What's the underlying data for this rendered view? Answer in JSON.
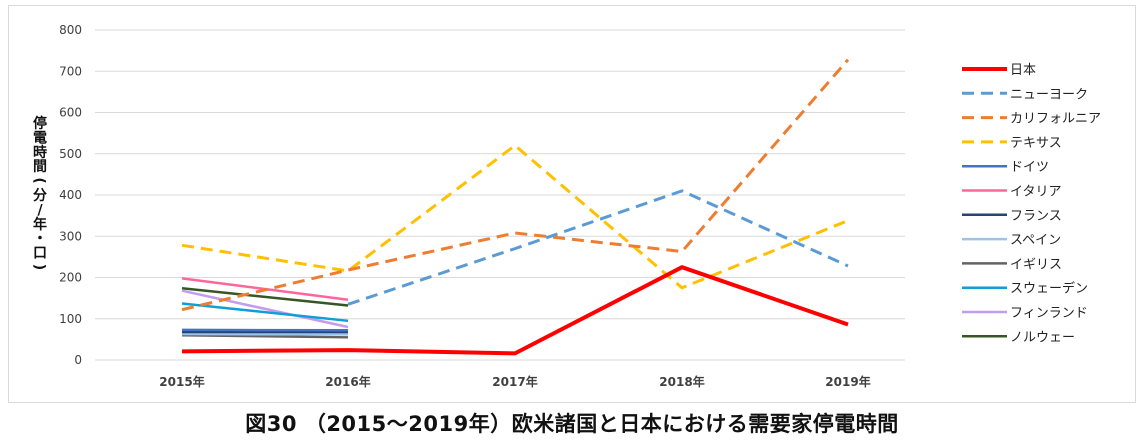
{
  "caption": "図30 （2015～2019年）欧米諸国と日本における需要家停電時間",
  "chart_data": {
    "type": "line",
    "ylabel": "停電時間(分/年・口)",
    "ylim": [
      0,
      800
    ],
    "yticks": [
      0,
      100,
      200,
      300,
      400,
      500,
      600,
      700,
      800
    ],
    "categories": [
      "2015年",
      "2016年",
      "2017年",
      "2018年",
      "2019年"
    ],
    "grid": true,
    "legend_position": "right",
    "series": [
      {
        "name": "日本",
        "color": "#ff0000",
        "dash": "solid",
        "width": 4,
        "values": [
          21,
          24,
          16,
          225,
          86
        ]
      },
      {
        "name": "ニューヨーク",
        "color": "#5b9bd5",
        "dash": "dashed",
        "width": 3,
        "values": [
          null,
          135,
          270,
          410,
          228
        ]
      },
      {
        "name": "カリフォルニア",
        "color": "#ed7d31",
        "dash": "dashed",
        "width": 3,
        "values": [
          122,
          218,
          308,
          263,
          728
        ]
      },
      {
        "name": "テキサス",
        "color": "#ffc000",
        "dash": "dashed",
        "width": 3,
        "values": [
          278,
          216,
          520,
          175,
          338
        ]
      },
      {
        "name": "ドイツ",
        "color": "#4472c4",
        "dash": "solid",
        "width": 2.5,
        "values": [
          73,
          72,
          null,
          null,
          null
        ]
      },
      {
        "name": "イタリア",
        "color": "#ff6699",
        "dash": "solid",
        "width": 2.5,
        "values": [
          198,
          146,
          null,
          null,
          null
        ]
      },
      {
        "name": "フランス",
        "color": "#264478",
        "dash": "solid",
        "width": 2.5,
        "values": [
          68,
          68,
          null,
          null,
          null
        ]
      },
      {
        "name": "スペイン",
        "color": "#9dc3e6",
        "dash": "solid",
        "width": 2.5,
        "values": [
          63,
          62,
          null,
          null,
          null
        ]
      },
      {
        "name": "イギリス",
        "color": "#636363",
        "dash": "solid",
        "width": 2.5,
        "values": [
          60,
          55,
          null,
          null,
          null
        ]
      },
      {
        "name": "スウェーデン",
        "color": "#0f9ed5",
        "dash": "solid",
        "width": 2.5,
        "values": [
          137,
          95,
          null,
          null,
          null
        ]
      },
      {
        "name": "フィンランド",
        "color": "#c39bf0",
        "dash": "solid",
        "width": 2.5,
        "values": [
          168,
          80,
          null,
          null,
          null
        ]
      },
      {
        "name": "ノルウェー",
        "color": "#375623",
        "dash": "solid",
        "width": 2.5,
        "values": [
          174,
          132,
          null,
          null,
          null
        ]
      }
    ]
  }
}
